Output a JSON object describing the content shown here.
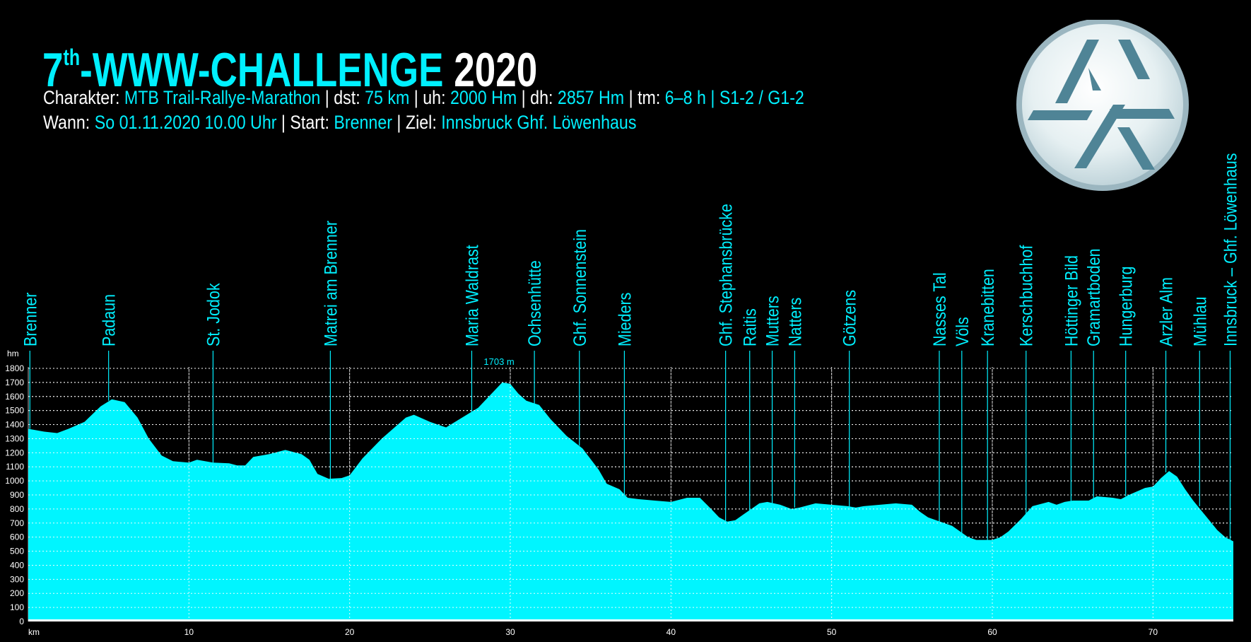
{
  "header": {
    "title_main": "7",
    "title_sup": "th",
    "title_rest": "-WWW-CHALLENGE",
    "title_year": "2020",
    "line1": [
      {
        "t": "Charakter: ",
        "c": false
      },
      {
        "t": "MTB Trail-Rallye-Marathon",
        "c": true
      },
      {
        "t": " | dst: ",
        "c": false
      },
      {
        "t": "75 km",
        "c": true
      },
      {
        "t": " | uh: ",
        "c": false
      },
      {
        "t": "2000 Hm",
        "c": true
      },
      {
        "t": " | dh: ",
        "c": false
      },
      {
        "t": "2857 Hm",
        "c": true
      },
      {
        "t": " | tm: ",
        "c": false
      },
      {
        "t": "6–8 h",
        "c": true
      },
      {
        "t": " | S1-2 / G1-2",
        "c": true
      }
    ],
    "line2": [
      {
        "t": "Wann: ",
        "c": false
      },
      {
        "t": "So 01.11.2020 10.00 Uhr",
        "c": true
      },
      {
        "t": " | Start: ",
        "c": false
      },
      {
        "t": "Brenner",
        "c": true
      },
      {
        "t": " | Ziel: ",
        "c": false
      },
      {
        "t": "Innsbruck Ghf. Löwenhaus",
        "c": true
      }
    ]
  },
  "colors": {
    "accent": "#00f0ff",
    "fill": "#00f5ff",
    "background": "#000000",
    "grid": "#ffffff",
    "logo": "#4a7c8f"
  },
  "logo": {
    "icon": "triangle-logo-icon"
  },
  "chart_data": {
    "type": "area",
    "xlabel": "km",
    "ylabel": "hm",
    "xlim": [
      0,
      75
    ],
    "ylim": [
      0,
      1800
    ],
    "xticks": [
      10,
      20,
      30,
      40,
      50,
      60,
      70
    ],
    "yticks": [
      0,
      100,
      200,
      300,
      400,
      500,
      600,
      700,
      800,
      900,
      1000,
      1100,
      1200,
      1300,
      1400,
      1500,
      1600,
      1700,
      1800
    ],
    "grid": true,
    "peak_label": "1703 m",
    "peak_km": 29.3,
    "profile": [
      [
        0,
        1370
      ],
      [
        1,
        1350
      ],
      [
        1.8,
        1340
      ],
      [
        2.5,
        1370
      ],
      [
        3.5,
        1420
      ],
      [
        4.5,
        1530
      ],
      [
        5.2,
        1580
      ],
      [
        6,
        1560
      ],
      [
        6.8,
        1450
      ],
      [
        7.5,
        1300
      ],
      [
        8.3,
        1180
      ],
      [
        9,
        1140
      ],
      [
        10,
        1130
      ],
      [
        10.5,
        1150
      ],
      [
        11.5,
        1130
      ],
      [
        12.5,
        1125
      ],
      [
        13,
        1110
      ],
      [
        13.5,
        1110
      ],
      [
        14,
        1170
      ],
      [
        15,
        1190
      ],
      [
        16,
        1220
      ],
      [
        17,
        1190
      ],
      [
        17.5,
        1150
      ],
      [
        18,
        1050
      ],
      [
        18.7,
        1015
      ],
      [
        19.5,
        1020
      ],
      [
        20,
        1040
      ],
      [
        20.8,
        1160
      ],
      [
        22,
        1300
      ],
      [
        23.5,
        1450
      ],
      [
        24,
        1470
      ],
      [
        25,
        1420
      ],
      [
        25.5,
        1400
      ],
      [
        26,
        1380
      ],
      [
        27,
        1450
      ],
      [
        28,
        1520
      ],
      [
        29,
        1640
      ],
      [
        29.5,
        1700
      ],
      [
        30,
        1690
      ],
      [
        30.5,
        1620
      ],
      [
        31,
        1570
      ],
      [
        31.8,
        1540
      ],
      [
        32.5,
        1440
      ],
      [
        33.5,
        1320
      ],
      [
        34.5,
        1230
      ],
      [
        35.5,
        1080
      ],
      [
        36,
        980
      ],
      [
        36.8,
        940
      ],
      [
        37.3,
        880
      ],
      [
        38,
        870
      ],
      [
        39,
        860
      ],
      [
        40,
        850
      ],
      [
        41,
        880
      ],
      [
        41.8,
        880
      ],
      [
        42.5,
        800
      ],
      [
        43,
        740
      ],
      [
        43.5,
        710
      ],
      [
        44,
        720
      ],
      [
        44.5,
        760
      ],
      [
        45,
        800
      ],
      [
        45.5,
        840
      ],
      [
        46,
        850
      ],
      [
        46.8,
        830
      ],
      [
        47.5,
        800
      ],
      [
        48,
        810
      ],
      [
        49,
        840
      ],
      [
        50,
        830
      ],
      [
        51,
        820
      ],
      [
        51.5,
        810
      ],
      [
        52,
        820
      ],
      [
        53,
        830
      ],
      [
        54,
        840
      ],
      [
        55,
        830
      ],
      [
        55.5,
        780
      ],
      [
        56,
        740
      ],
      [
        56.5,
        720
      ],
      [
        57,
        700
      ],
      [
        57.5,
        680
      ],
      [
        58,
        640
      ],
      [
        58.5,
        600
      ],
      [
        59,
        580
      ],
      [
        60,
        580
      ],
      [
        60.5,
        600
      ],
      [
        61,
        640
      ],
      [
        61.8,
        730
      ],
      [
        62.5,
        820
      ],
      [
        63.5,
        850
      ],
      [
        64,
        830
      ],
      [
        64.5,
        850
      ],
      [
        65,
        860
      ],
      [
        66,
        860
      ],
      [
        66.5,
        890
      ],
      [
        67.5,
        880
      ],
      [
        68,
        870
      ],
      [
        68.5,
        900
      ],
      [
        69.5,
        950
      ],
      [
        70,
        960
      ],
      [
        70.5,
        1020
      ],
      [
        71,
        1070
      ],
      [
        71.5,
        1030
      ],
      [
        72,
        940
      ],
      [
        72.5,
        860
      ],
      [
        73,
        790
      ],
      [
        73.5,
        720
      ],
      [
        74,
        650
      ],
      [
        74.5,
        600
      ],
      [
        75,
        570
      ]
    ],
    "waypoints": [
      {
        "name": "Brenner",
        "km": 0.1,
        "alt": 1370
      },
      {
        "name": "Padaun",
        "km": 5,
        "alt": 1570
      },
      {
        "name": "St. Jodok",
        "km": 11.5,
        "alt": 1130
      },
      {
        "name": "Matrei am Brenner",
        "km": 18.8,
        "alt": 1015
      },
      {
        "name": "Maria Waldrast",
        "km": 27.6,
        "alt": 1480
      },
      {
        "name": "Ochsenhütte",
        "km": 31.5,
        "alt": 1550
      },
      {
        "name": "Ghf. Sonnenstein",
        "km": 34.3,
        "alt": 1250
      },
      {
        "name": "Mieders",
        "km": 37.1,
        "alt": 880
      },
      {
        "name": "Ghf. Stephansbrücke",
        "km": 43.4,
        "alt": 715
      },
      {
        "name": "Raitis",
        "km": 44.9,
        "alt": 790
      },
      {
        "name": "Mutters",
        "km": 46.3,
        "alt": 840
      },
      {
        "name": "Natters",
        "km": 47.7,
        "alt": 810
      },
      {
        "name": "Götzens",
        "km": 51.1,
        "alt": 815
      },
      {
        "name": "Nasses Tal",
        "km": 56.7,
        "alt": 710
      },
      {
        "name": "Völs",
        "km": 58.1,
        "alt": 630
      },
      {
        "name": "Kranebitten",
        "km": 59.7,
        "alt": 580
      },
      {
        "name": "Kerschbuchhof",
        "km": 62.1,
        "alt": 760
      },
      {
        "name": "Höttinger Bild",
        "km": 64.9,
        "alt": 855
      },
      {
        "name": "Gramartboden",
        "km": 66.3,
        "alt": 870
      },
      {
        "name": "Hungerburg",
        "km": 68.3,
        "alt": 890
      },
      {
        "name": "Arzler Alm",
        "km": 70.8,
        "alt": 1060
      },
      {
        "name": "Mühlau",
        "km": 72.9,
        "alt": 820
      },
      {
        "name": "Innsbruck – Ghf. Löwenhaus",
        "km": 74.8,
        "alt": 580
      }
    ]
  }
}
